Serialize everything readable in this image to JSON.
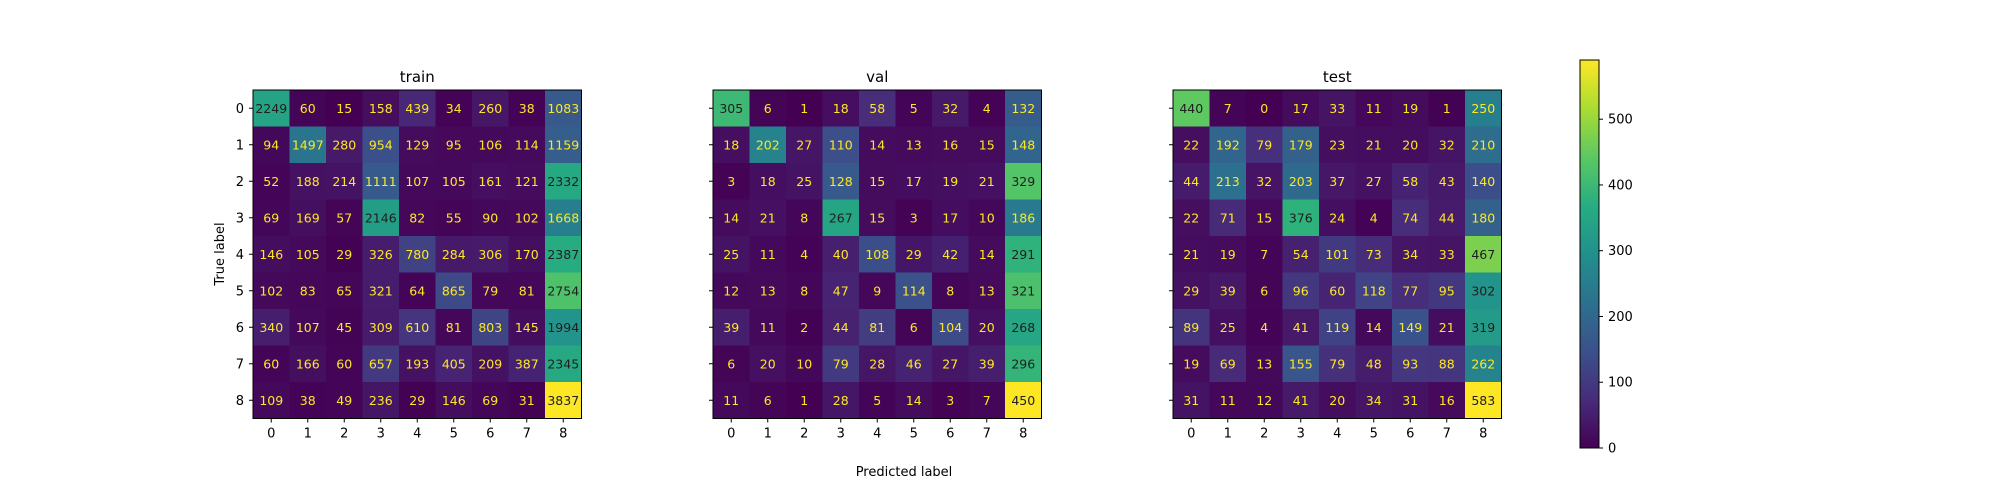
{
  "chart_data": {
    "type": "heatmap",
    "x_label": "Predicted label",
    "y_label": "True label",
    "categories": [
      "0",
      "1",
      "2",
      "3",
      "4",
      "5",
      "6",
      "7",
      "8"
    ],
    "colormap": "viridis",
    "colorbar": {
      "min": 0,
      "max": 590,
      "ticks": [
        0,
        100,
        200,
        300,
        400,
        500
      ]
    },
    "matrices": [
      {
        "title": "train",
        "values": [
          [
            2249,
            60,
            15,
            158,
            439,
            34,
            260,
            38,
            1083
          ],
          [
            94,
            1497,
            280,
            954,
            129,
            95,
            106,
            114,
            1159
          ],
          [
            52,
            188,
            214,
            1111,
            107,
            105,
            161,
            121,
            2332
          ],
          [
            69,
            169,
            57,
            2146,
            82,
            55,
            90,
            102,
            1668
          ],
          [
            146,
            105,
            29,
            326,
            780,
            284,
            306,
            170,
            2387
          ],
          [
            102,
            83,
            65,
            321,
            64,
            865,
            79,
            81,
            2754
          ],
          [
            340,
            107,
            45,
            309,
            610,
            81,
            803,
            145,
            1994
          ],
          [
            60,
            166,
            60,
            657,
            193,
            405,
            209,
            387,
            2345
          ],
          [
            109,
            38,
            49,
            236,
            29,
            146,
            69,
            31,
            3837
          ]
        ]
      },
      {
        "title": "val",
        "values": [
          [
            305,
            6,
            1,
            18,
            58,
            5,
            32,
            4,
            132
          ],
          [
            18,
            202,
            27,
            110,
            14,
            13,
            16,
            15,
            148
          ],
          [
            3,
            18,
            25,
            128,
            15,
            17,
            19,
            21,
            329
          ],
          [
            14,
            21,
            8,
            267,
            15,
            3,
            17,
            10,
            186
          ],
          [
            25,
            11,
            4,
            40,
            108,
            29,
            42,
            14,
            291
          ],
          [
            12,
            13,
            8,
            47,
            9,
            114,
            8,
            13,
            321
          ],
          [
            39,
            11,
            2,
            44,
            81,
            6,
            104,
            20,
            268
          ],
          [
            6,
            20,
            10,
            79,
            28,
            46,
            27,
            39,
            296
          ],
          [
            11,
            6,
            1,
            28,
            5,
            14,
            3,
            7,
            450
          ]
        ]
      },
      {
        "title": "test",
        "values": [
          [
            440,
            7,
            0,
            17,
            33,
            11,
            19,
            1,
            250
          ],
          [
            22,
            192,
            79,
            179,
            23,
            21,
            20,
            32,
            210
          ],
          [
            44,
            213,
            32,
            203,
            37,
            27,
            58,
            43,
            140
          ],
          [
            22,
            71,
            15,
            376,
            24,
            4,
            74,
            44,
            180
          ],
          [
            21,
            19,
            7,
            54,
            101,
            73,
            34,
            33,
            467
          ],
          [
            29,
            39,
            6,
            96,
            60,
            118,
            77,
            95,
            302
          ],
          [
            89,
            25,
            4,
            41,
            119,
            14,
            149,
            21,
            319
          ],
          [
            19,
            69,
            13,
            155,
            79,
            48,
            93,
            88,
            262
          ],
          [
            31,
            11,
            12,
            41,
            20,
            34,
            31,
            16,
            583
          ]
        ]
      }
    ]
  }
}
